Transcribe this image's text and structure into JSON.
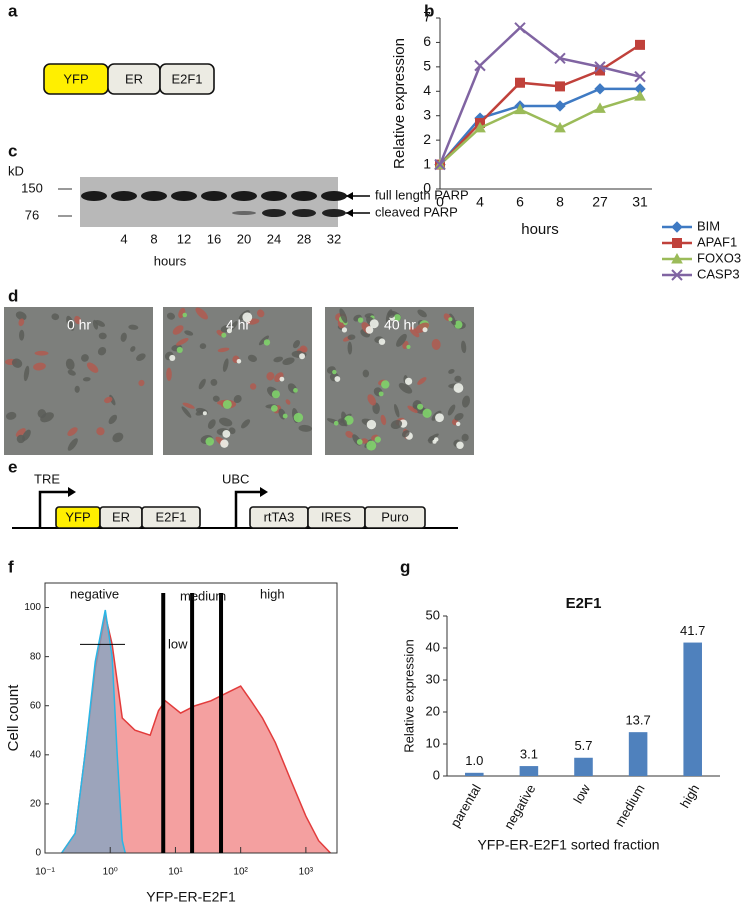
{
  "panel_labels": [
    "a",
    "b",
    "c",
    "d",
    "e",
    "f",
    "g"
  ],
  "construct_a": [
    "YFP",
    "ER",
    "E2F1"
  ],
  "blot": {
    "unit": "kD",
    "markers": [
      "150",
      "76"
    ],
    "lanes": [
      "4",
      "8",
      "12",
      "16",
      "20",
      "24",
      "28",
      "32"
    ],
    "bands": [
      "full length PARP",
      "cleaved PARP"
    ],
    "xlabel": "hours"
  },
  "micrographs": [
    "0 hr",
    "4 hr",
    "40 hr"
  ],
  "construct_e": {
    "promoters": [
      "TRE",
      "UBC"
    ],
    "cassette1": [
      "YFP",
      "ER",
      "E2F1"
    ],
    "cassette2": [
      "rtTA3",
      "IRES",
      "Puro"
    ]
  },
  "chart_data": [
    {
      "type": "line",
      "ylabel": "Relative expression",
      "xlabel": "hours",
      "categories": [
        "0",
        "4",
        "6",
        "8",
        "27",
        "31"
      ],
      "ylim": [
        0,
        7
      ],
      "yticks": [
        0,
        1,
        2,
        3,
        4,
        5,
        6,
        7
      ],
      "series": [
        {
          "name": "BIM",
          "color": "#3f7ac3",
          "marker": "diamond",
          "values": [
            1,
            2.9,
            3.4,
            3.4,
            4.1,
            4.1
          ]
        },
        {
          "name": "APAF1",
          "color": "#c0413b",
          "marker": "square",
          "values": [
            1,
            2.7,
            4.35,
            4.2,
            4.85,
            5.9
          ]
        },
        {
          "name": "FOXO3",
          "color": "#9bbb59",
          "marker": "triangle",
          "values": [
            1,
            2.5,
            3.25,
            2.5,
            3.3,
            3.8
          ]
        },
        {
          "name": "CASP3",
          "color": "#8064a2",
          "marker": "cross",
          "values": [
            1,
            5.05,
            6.6,
            5.35,
            5.0,
            4.6
          ]
        }
      ]
    },
    {
      "type": "area",
      "ylabel": "Cell count",
      "xlabel": "YFP-ER-E2F1",
      "xlog": true,
      "xlim": [
        0.1,
        3000
      ],
      "ylim": [
        0,
        110
      ],
      "xticks": [
        {
          "value": 0.1,
          "label": "10⁻¹"
        },
        {
          "value": 1,
          "label": "10⁰"
        },
        {
          "value": 10,
          "label": "10¹"
        },
        {
          "value": 100,
          "label": "10²"
        },
        {
          "value": 1000,
          "label": "10³"
        }
      ],
      "yticks": [
        0,
        20,
        40,
        60,
        80,
        100
      ],
      "gates": [
        6.5,
        18,
        50
      ],
      "annotations": [
        "negative",
        "low",
        "medium",
        "high"
      ],
      "series": [
        {
          "color": "#f08080",
          "x": [
            0.18,
            0.29,
            0.41,
            0.59,
            0.84,
            1.07,
            1.53,
            2.4,
            4.1,
            5.5,
            7.0,
            12,
            20,
            35,
            59,
            100,
            144,
            216,
            340,
            580,
            1000,
            1570,
            2380
          ],
          "values": [
            0,
            8,
            40,
            75,
            97,
            85,
            55,
            50,
            48,
            58,
            62,
            57,
            60,
            62,
            65,
            68,
            62,
            55,
            45,
            30,
            15,
            5,
            0
          ]
        },
        {
          "color": "#7fa6c4",
          "x": [
            0.18,
            0.29,
            0.41,
            0.59,
            0.84,
            1.07,
            1.28,
            1.53,
            1.7
          ],
          "values": [
            0,
            8,
            40,
            78,
            99,
            80,
            40,
            5,
            0
          ]
        }
      ]
    },
    {
      "type": "bar",
      "title": "E2F1",
      "ylabel": "Relative expression",
      "xlabel": "YFP-ER-E2F1 sorted fraction",
      "categories": [
        "parental",
        "negative",
        "low",
        "medium",
        "high"
      ],
      "values": [
        1.0,
        3.1,
        5.7,
        13.7,
        41.7
      ],
      "value_labels": [
        "1.0",
        "3.1",
        "5.7",
        "13.7",
        "41.7"
      ],
      "color": "#4f81bd",
      "ylim": [
        0,
        50
      ],
      "yticks": [
        0,
        10,
        20,
        30,
        40,
        50
      ]
    }
  ]
}
